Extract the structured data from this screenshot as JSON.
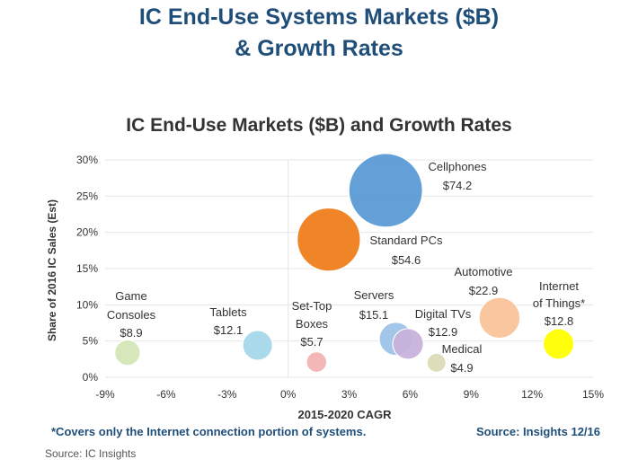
{
  "header": {
    "title_line1": "IC End-Use Systems Markets ($B)",
    "title_line2": "& Growth Rates"
  },
  "colors": {
    "title": "#1f4e79",
    "grid": "#e6e6e6"
  },
  "chart_data": {
    "type": "bubble",
    "title": "IC End-Use Markets ($B) and Growth Rates",
    "xlabel": "2015-2020 CAGR",
    "ylabel": "Share of 2016 IC Sales (Est)",
    "xlim": [
      -9,
      15
    ],
    "ylim": [
      0,
      30
    ],
    "x_ticks": [
      "-9%",
      "-6%",
      "-3%",
      "0%",
      "3%",
      "6%",
      "9%",
      "12%",
      "15%"
    ],
    "y_ticks": [
      "0%",
      "5%",
      "10%",
      "15%",
      "20%",
      "25%",
      "30%"
    ],
    "grid": "horizontal",
    "size_unit": "$B",
    "series": [
      {
        "label": "Cellphones",
        "value_label": "$74.2",
        "x": 4.8,
        "y": 25.8,
        "size": 74.2,
        "color": "#5b9bd5"
      },
      {
        "label": "Standard PCs",
        "value_label": "$54.6",
        "x": 2.0,
        "y": 19.0,
        "size": 54.6,
        "color": "#f07f1d"
      },
      {
        "label": "Automotive",
        "value_label": "$22.9",
        "x": 10.4,
        "y": 8.2,
        "size": 22.9,
        "color": "#f9c49a"
      },
      {
        "label": "Internet of Things*",
        "value_label": "$12.8",
        "x": 13.3,
        "y": 4.6,
        "size": 12.8,
        "color": "#ffff00"
      },
      {
        "label": "Servers",
        "value_label": "$15.1",
        "x": 5.3,
        "y": 5.3,
        "size": 15.1,
        "color": "#9dc3e6"
      },
      {
        "label": "Digital TVs",
        "value_label": "$12.9",
        "x": 5.9,
        "y": 4.6,
        "size": 12.9,
        "color": "#c9b3dc"
      },
      {
        "label": "Medical",
        "value_label": "$4.9",
        "x": 7.3,
        "y": 2.0,
        "size": 4.9,
        "color": "#dcdcb8"
      },
      {
        "label": "Set-Top Boxes",
        "value_label": "$5.7",
        "x": 1.4,
        "y": 2.1,
        "size": 5.7,
        "color": "#f4b4b4"
      },
      {
        "label": "Tablets",
        "value_label": "$12.1",
        "x": -1.5,
        "y": 4.4,
        "size": 12.1,
        "color": "#a6d8ea"
      },
      {
        "label": "Game Consoles",
        "value_label": "$8.9",
        "x": -7.9,
        "y": 3.4,
        "size": 8.9,
        "color": "#d4e6b8"
      }
    ]
  },
  "footer": {
    "note": "*Covers only the Internet connection portion of systems.",
    "source_right": "Source: Insights 12/16",
    "source_left": "Source: IC Insights"
  }
}
